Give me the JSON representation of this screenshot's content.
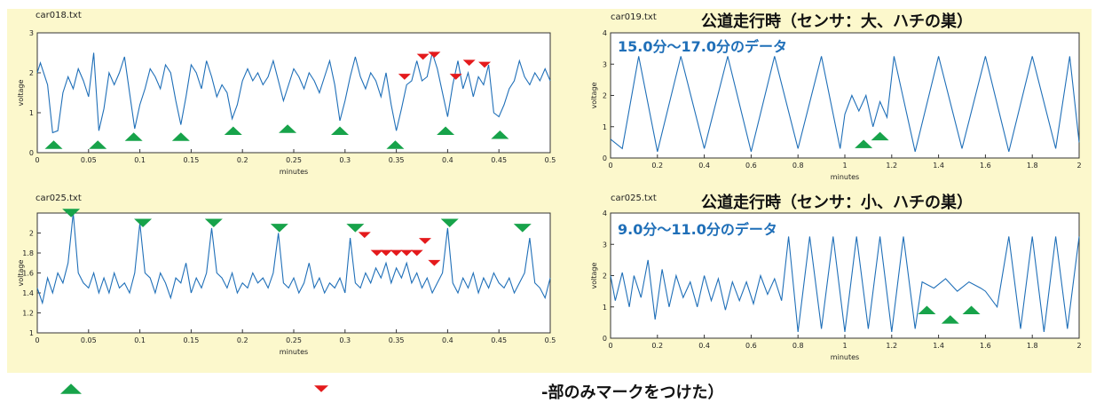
{
  "colors": {
    "panel_bg": "#fcf8cc",
    "line": "#1f6fb8",
    "green": "#17a34a",
    "red": "#e41a1c",
    "blue_text": "#1f6fb8"
  },
  "legend": {
    "green_marker_icon": "triangle-up-green",
    "red_marker_icon": "triangle-down-red",
    "note": "-部のみマークをつけた）"
  },
  "chart_data": [
    {
      "type": "line",
      "file": "car018.txt",
      "xlabel": "minutes",
      "ylabel": "voltage",
      "xlim": [
        0,
        0.5
      ],
      "ylim": [
        0,
        3
      ],
      "xticks": [
        "0",
        "0.05",
        "0.1",
        "0.15",
        "0.2",
        "0.25",
        "0.3",
        "0.35",
        "0.4",
        "0.45",
        "0.5"
      ],
      "yticks": [
        "0",
        "1",
        "2",
        "3"
      ],
      "series_points": [
        [
          0,
          2.0
        ],
        [
          0.003,
          2.25
        ],
        [
          0.01,
          1.7
        ],
        [
          0.015,
          0.5
        ],
        [
          0.02,
          0.55
        ],
        [
          0.025,
          1.5
        ],
        [
          0.03,
          1.9
        ],
        [
          0.035,
          1.6
        ],
        [
          0.04,
          2.1
        ],
        [
          0.045,
          1.8
        ],
        [
          0.05,
          1.4
        ],
        [
          0.055,
          2.5
        ],
        [
          0.06,
          0.55
        ],
        [
          0.065,
          1.1
        ],
        [
          0.07,
          2.0
        ],
        [
          0.075,
          1.7
        ],
        [
          0.08,
          2.0
        ],
        [
          0.085,
          2.4
        ],
        [
          0.09,
          1.5
        ],
        [
          0.095,
          0.6
        ],
        [
          0.1,
          1.2
        ],
        [
          0.105,
          1.6
        ],
        [
          0.11,
          2.1
        ],
        [
          0.115,
          1.9
        ],
        [
          0.12,
          1.6
        ],
        [
          0.125,
          2.2
        ],
        [
          0.13,
          2.0
        ],
        [
          0.135,
          1.3
        ],
        [
          0.14,
          0.7
        ],
        [
          0.145,
          1.4
        ],
        [
          0.15,
          2.2
        ],
        [
          0.155,
          2.0
        ],
        [
          0.16,
          1.6
        ],
        [
          0.165,
          2.3
        ],
        [
          0.17,
          1.9
        ],
        [
          0.175,
          1.4
        ],
        [
          0.18,
          1.7
        ],
        [
          0.185,
          1.5
        ],
        [
          0.19,
          0.85
        ],
        [
          0.195,
          1.2
        ],
        [
          0.2,
          1.8
        ],
        [
          0.205,
          2.1
        ],
        [
          0.21,
          1.8
        ],
        [
          0.215,
          2.0
        ],
        [
          0.22,
          1.7
        ],
        [
          0.225,
          1.9
        ],
        [
          0.23,
          2.3
        ],
        [
          0.235,
          1.8
        ],
        [
          0.24,
          1.3
        ],
        [
          0.245,
          1.7
        ],
        [
          0.25,
          2.1
        ],
        [
          0.255,
          1.9
        ],
        [
          0.26,
          1.6
        ],
        [
          0.265,
          2.0
        ],
        [
          0.27,
          1.8
        ],
        [
          0.275,
          1.5
        ],
        [
          0.28,
          1.9
        ],
        [
          0.285,
          2.3
        ],
        [
          0.29,
          1.7
        ],
        [
          0.295,
          0.8
        ],
        [
          0.3,
          1.3
        ],
        [
          0.305,
          1.9
        ],
        [
          0.31,
          2.4
        ],
        [
          0.315,
          1.9
        ],
        [
          0.32,
          1.6
        ],
        [
          0.325,
          2.0
        ],
        [
          0.33,
          1.8
        ],
        [
          0.335,
          1.4
        ],
        [
          0.34,
          2.0
        ],
        [
          0.345,
          1.2
        ],
        [
          0.35,
          0.55
        ],
        [
          0.355,
          1.1
        ],
        [
          0.36,
          1.7
        ],
        [
          0.365,
          1.8
        ],
        [
          0.37,
          2.3
        ],
        [
          0.375,
          1.8
        ],
        [
          0.38,
          1.9
        ],
        [
          0.385,
          2.5
        ],
        [
          0.39,
          2.1
        ],
        [
          0.395,
          1.5
        ],
        [
          0.4,
          0.9
        ],
        [
          0.405,
          1.7
        ],
        [
          0.41,
          2.3
        ],
        [
          0.415,
          1.6
        ],
        [
          0.42,
          2.0
        ],
        [
          0.425,
          1.4
        ],
        [
          0.43,
          1.9
        ],
        [
          0.435,
          1.7
        ],
        [
          0.44,
          2.2
        ],
        [
          0.445,
          1.0
        ],
        [
          0.45,
          0.9
        ],
        [
          0.455,
          1.2
        ],
        [
          0.46,
          1.6
        ],
        [
          0.465,
          1.8
        ],
        [
          0.47,
          2.3
        ],
        [
          0.475,
          1.9
        ],
        [
          0.48,
          1.7
        ],
        [
          0.485,
          2.0
        ],
        [
          0.49,
          1.8
        ],
        [
          0.495,
          2.1
        ],
        [
          0.5,
          1.8
        ]
      ],
      "markers_up_green": [
        [
          0.016,
          0.2
        ],
        [
          0.059,
          0.2
        ],
        [
          0.094,
          0.4
        ],
        [
          0.14,
          0.4
        ],
        [
          0.191,
          0.55
        ],
        [
          0.244,
          0.6
        ],
        [
          0.295,
          0.55
        ],
        [
          0.349,
          0.2
        ],
        [
          0.398,
          0.55
        ],
        [
          0.451,
          0.45
        ]
      ],
      "markers_down_red": [
        [
          0.358,
          1.9
        ],
        [
          0.376,
          2.4
        ],
        [
          0.387,
          2.45
        ],
        [
          0.408,
          1.9
        ],
        [
          0.421,
          2.25
        ],
        [
          0.436,
          2.2
        ]
      ]
    },
    {
      "type": "line",
      "file": "car019.txt",
      "title": "公道走行時（センサ：大、ハチの巣）",
      "subtitle": "15.0分～17.0分のデータ",
      "xlabel": "minutes",
      "ylabel": "voltage",
      "xlim": [
        0,
        2
      ],
      "ylim": [
        0,
        4
      ],
      "xticks": [
        "0",
        "0.2",
        "0.4",
        "0.6",
        "0.8",
        "1",
        "1.2",
        "1.4",
        "1.6",
        "1.8",
        "2"
      ],
      "yticks": [
        "0",
        "1",
        "2",
        "3",
        "4"
      ],
      "series_points": [
        [
          0,
          0.6
        ],
        [
          0.05,
          0.3
        ],
        [
          0.12,
          3.25
        ],
        [
          0.2,
          0.2
        ],
        [
          0.3,
          3.25
        ],
        [
          0.4,
          0.3
        ],
        [
          0.5,
          3.25
        ],
        [
          0.6,
          0.2
        ],
        [
          0.7,
          3.25
        ],
        [
          0.8,
          0.3
        ],
        [
          0.9,
          3.25
        ],
        [
          0.98,
          0.3
        ],
        [
          1.0,
          1.4
        ],
        [
          1.03,
          2.0
        ],
        [
          1.06,
          1.5
        ],
        [
          1.09,
          2.0
        ],
        [
          1.12,
          1.0
        ],
        [
          1.15,
          1.8
        ],
        [
          1.18,
          1.3
        ],
        [
          1.21,
          3.25
        ],
        [
          1.3,
          0.2
        ],
        [
          1.4,
          3.25
        ],
        [
          1.5,
          0.3
        ],
        [
          1.6,
          3.25
        ],
        [
          1.7,
          0.2
        ],
        [
          1.8,
          3.25
        ],
        [
          1.9,
          0.3
        ],
        [
          1.96,
          3.25
        ],
        [
          2.0,
          0.5
        ]
      ],
      "markers_up_green": [
        [
          1.08,
          0.45
        ],
        [
          1.15,
          0.7
        ]
      ],
      "markers_down_red": []
    },
    {
      "type": "line",
      "file": "car025.txt",
      "xlabel": "minutes",
      "ylabel": "voltage",
      "xlim": [
        0,
        0.5
      ],
      "ylim": [
        1,
        2.2
      ],
      "xticks": [
        "0",
        "0.05",
        "0.1",
        "0.15",
        "0.2",
        "0.25",
        "0.3",
        "0.35",
        "0.4",
        "0.45",
        "0.5"
      ],
      "yticks": [
        "1",
        "1.2",
        "1.4",
        "1.6",
        "1.8",
        "2"
      ],
      "series_points": [
        [
          0,
          1.45
        ],
        [
          0.005,
          1.3
        ],
        [
          0.01,
          1.55
        ],
        [
          0.015,
          1.4
        ],
        [
          0.02,
          1.6
        ],
        [
          0.025,
          1.5
        ],
        [
          0.03,
          1.7
        ],
        [
          0.035,
          2.2
        ],
        [
          0.04,
          1.6
        ],
        [
          0.045,
          1.5
        ],
        [
          0.05,
          1.45
        ],
        [
          0.055,
          1.6
        ],
        [
          0.06,
          1.4
        ],
        [
          0.065,
          1.55
        ],
        [
          0.07,
          1.4
        ],
        [
          0.075,
          1.6
        ],
        [
          0.08,
          1.45
        ],
        [
          0.085,
          1.5
        ],
        [
          0.09,
          1.4
        ],
        [
          0.095,
          1.6
        ],
        [
          0.1,
          2.1
        ],
        [
          0.105,
          1.6
        ],
        [
          0.11,
          1.55
        ],
        [
          0.115,
          1.4
        ],
        [
          0.12,
          1.6
        ],
        [
          0.125,
          1.5
        ],
        [
          0.13,
          1.35
        ],
        [
          0.135,
          1.55
        ],
        [
          0.14,
          1.5
        ],
        [
          0.145,
          1.7
        ],
        [
          0.15,
          1.4
        ],
        [
          0.155,
          1.55
        ],
        [
          0.16,
          1.45
        ],
        [
          0.165,
          1.6
        ],
        [
          0.17,
          2.05
        ],
        [
          0.175,
          1.6
        ],
        [
          0.18,
          1.55
        ],
        [
          0.185,
          1.45
        ],
        [
          0.19,
          1.6
        ],
        [
          0.195,
          1.4
        ],
        [
          0.2,
          1.5
        ],
        [
          0.205,
          1.45
        ],
        [
          0.21,
          1.6
        ],
        [
          0.215,
          1.5
        ],
        [
          0.22,
          1.55
        ],
        [
          0.225,
          1.45
        ],
        [
          0.23,
          1.6
        ],
        [
          0.235,
          2.0
        ],
        [
          0.24,
          1.5
        ],
        [
          0.245,
          1.45
        ],
        [
          0.25,
          1.55
        ],
        [
          0.255,
          1.4
        ],
        [
          0.26,
          1.5
        ],
        [
          0.265,
          1.7
        ],
        [
          0.27,
          1.45
        ],
        [
          0.275,
          1.55
        ],
        [
          0.28,
          1.4
        ],
        [
          0.285,
          1.5
        ],
        [
          0.29,
          1.45
        ],
        [
          0.295,
          1.55
        ],
        [
          0.3,
          1.4
        ],
        [
          0.305,
          1.95
        ],
        [
          0.31,
          1.5
        ],
        [
          0.315,
          1.45
        ],
        [
          0.32,
          1.6
        ],
        [
          0.325,
          1.5
        ],
        [
          0.33,
          1.65
        ],
        [
          0.335,
          1.55
        ],
        [
          0.34,
          1.7
        ],
        [
          0.345,
          1.5
        ],
        [
          0.35,
          1.65
        ],
        [
          0.355,
          1.55
        ],
        [
          0.36,
          1.7
        ],
        [
          0.365,
          1.5
        ],
        [
          0.37,
          1.6
        ],
        [
          0.375,
          1.45
        ],
        [
          0.38,
          1.55
        ],
        [
          0.385,
          1.4
        ],
        [
          0.39,
          1.5
        ],
        [
          0.395,
          1.6
        ],
        [
          0.4,
          2.05
        ],
        [
          0.405,
          1.5
        ],
        [
          0.41,
          1.4
        ],
        [
          0.415,
          1.55
        ],
        [
          0.42,
          1.45
        ],
        [
          0.425,
          1.6
        ],
        [
          0.43,
          1.4
        ],
        [
          0.435,
          1.55
        ],
        [
          0.44,
          1.45
        ],
        [
          0.445,
          1.6
        ],
        [
          0.45,
          1.5
        ],
        [
          0.455,
          1.45
        ],
        [
          0.46,
          1.55
        ],
        [
          0.465,
          1.4
        ],
        [
          0.47,
          1.5
        ],
        [
          0.475,
          1.6
        ],
        [
          0.48,
          1.95
        ],
        [
          0.485,
          1.5
        ],
        [
          0.49,
          1.45
        ],
        [
          0.495,
          1.35
        ],
        [
          0.5,
          1.55
        ]
      ],
      "markers_down_green": [
        [
          0.033,
          2.2
        ],
        [
          0.103,
          2.1
        ],
        [
          0.172,
          2.1
        ],
        [
          0.236,
          2.05
        ],
        [
          0.31,
          2.05
        ],
        [
          0.402,
          2.1
        ],
        [
          0.473,
          2.05
        ]
      ],
      "markers_down_red": [
        [
          0.319,
          1.98
        ],
        [
          0.331,
          1.8
        ],
        [
          0.34,
          1.8
        ],
        [
          0.35,
          1.8
        ],
        [
          0.36,
          1.8
        ],
        [
          0.37,
          1.8
        ],
        [
          0.378,
          1.92
        ],
        [
          0.387,
          1.7
        ]
      ]
    },
    {
      "type": "line",
      "file": "car025.txt",
      "title": "公道走行時（センサ：小、ハチの巣）",
      "subtitle": "9.0分～11.0分のデータ",
      "xlabel": "minutes",
      "ylabel": "voltage",
      "xlim": [
        0,
        2
      ],
      "ylim": [
        0,
        4
      ],
      "xticks": [
        "0",
        "0.2",
        "0.4",
        "0.6",
        "0.8",
        "1",
        "1.2",
        "1.4",
        "1.6",
        "1.8",
        "2"
      ],
      "yticks": [
        "0",
        "1",
        "2",
        "3",
        "4"
      ],
      "series_points": [
        [
          0,
          2.0
        ],
        [
          0.02,
          1.2
        ],
        [
          0.05,
          2.1
        ],
        [
          0.08,
          1.0
        ],
        [
          0.1,
          2.0
        ],
        [
          0.13,
          1.3
        ],
        [
          0.16,
          2.5
        ],
        [
          0.19,
          0.6
        ],
        [
          0.22,
          2.2
        ],
        [
          0.25,
          1.0
        ],
        [
          0.28,
          2.0
        ],
        [
          0.31,
          1.3
        ],
        [
          0.34,
          1.8
        ],
        [
          0.37,
          1.0
        ],
        [
          0.4,
          2.0
        ],
        [
          0.43,
          1.2
        ],
        [
          0.46,
          1.9
        ],
        [
          0.49,
          0.9
        ],
        [
          0.52,
          1.8
        ],
        [
          0.55,
          1.2
        ],
        [
          0.58,
          1.8
        ],
        [
          0.61,
          1.1
        ],
        [
          0.64,
          2.0
        ],
        [
          0.67,
          1.4
        ],
        [
          0.7,
          1.9
        ],
        [
          0.73,
          1.2
        ],
        [
          0.76,
          3.25
        ],
        [
          0.8,
          0.2
        ],
        [
          0.85,
          3.25
        ],
        [
          0.9,
          0.3
        ],
        [
          0.95,
          3.25
        ],
        [
          1.0,
          0.2
        ],
        [
          1.05,
          3.25
        ],
        [
          1.1,
          0.3
        ],
        [
          1.15,
          3.25
        ],
        [
          1.2,
          0.2
        ],
        [
          1.25,
          3.25
        ],
        [
          1.3,
          0.3
        ],
        [
          1.33,
          1.8
        ],
        [
          1.38,
          1.6
        ],
        [
          1.43,
          1.9
        ],
        [
          1.48,
          1.5
        ],
        [
          1.53,
          1.8
        ],
        [
          1.58,
          1.6
        ],
        [
          1.6,
          1.5
        ],
        [
          1.65,
          1.0
        ],
        [
          1.7,
          3.25
        ],
        [
          1.75,
          0.3
        ],
        [
          1.8,
          3.25
        ],
        [
          1.85,
          0.2
        ],
        [
          1.9,
          3.25
        ],
        [
          1.95,
          0.3
        ],
        [
          2.0,
          3.25
        ]
      ],
      "markers_up_green": [
        [
          1.35,
          0.9
        ],
        [
          1.45,
          0.6
        ],
        [
          1.54,
          0.9
        ]
      ],
      "markers_down_red": []
    }
  ]
}
